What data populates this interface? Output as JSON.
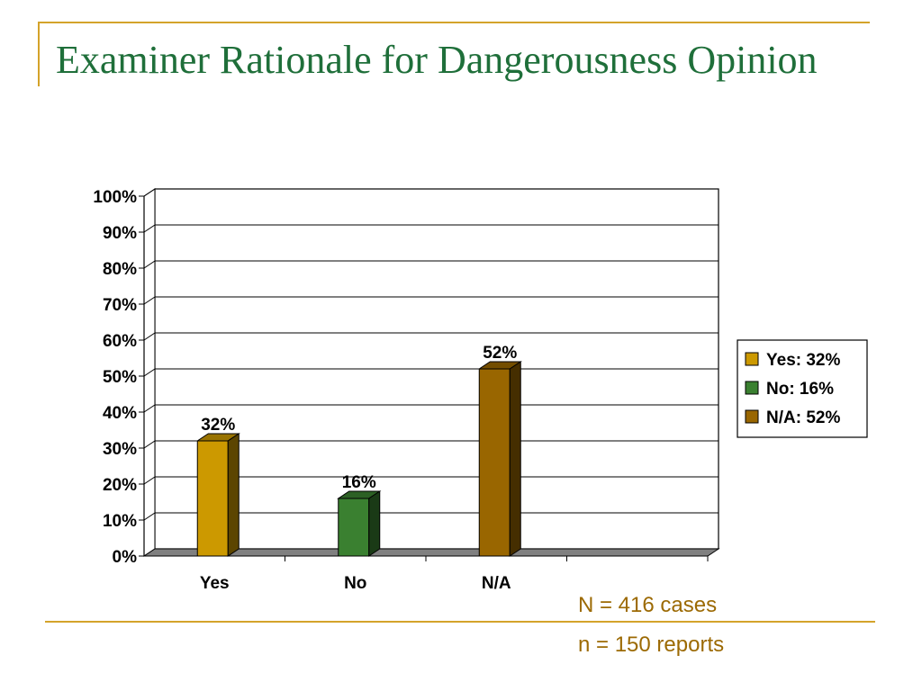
{
  "slide": {
    "title": "Examiner Rationale for Dangerousness Opinion",
    "notes": [
      "N = 416 cases",
      "n = 150 reports"
    ]
  },
  "colors": {
    "accent_rule": "#d4a32a",
    "title": "#1f6f3a",
    "note": "#9c6a04"
  },
  "chart_data": {
    "type": "bar",
    "categories": [
      "Yes",
      "No",
      "N/A"
    ],
    "values": [
      32,
      16,
      52
    ],
    "data_labels": [
      "32%",
      "16%",
      "52%"
    ],
    "colors": [
      "#cc9900",
      "#3a8030",
      "#996600"
    ],
    "y_ticks": [
      "0%",
      "10%",
      "20%",
      "30%",
      "40%",
      "50%",
      "60%",
      "70%",
      "80%",
      "90%",
      "100%"
    ],
    "ylim": [
      0,
      100
    ],
    "grid": true,
    "legend": {
      "position": "right",
      "entries": [
        "Yes: 32%",
        "No: 16%",
        "N/A: 52%"
      ]
    }
  }
}
